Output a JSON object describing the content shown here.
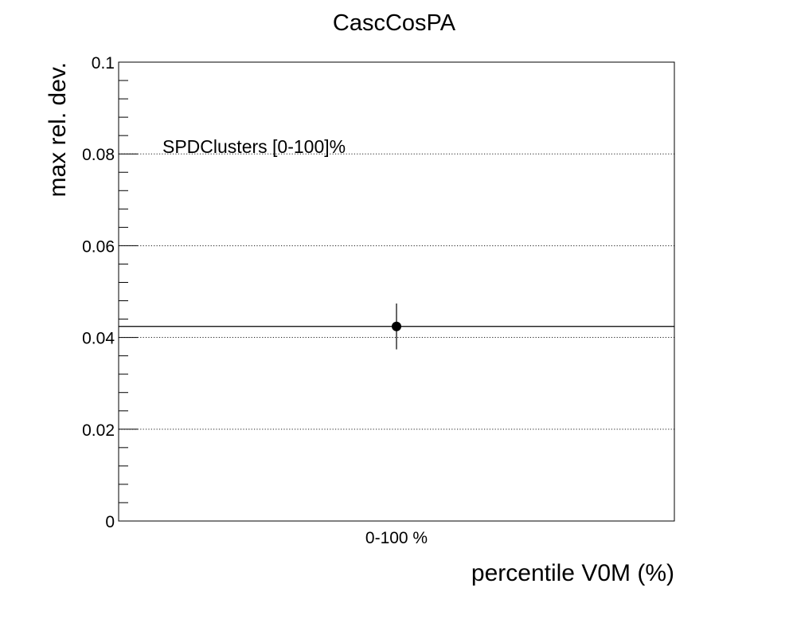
{
  "chart_data": {
    "type": "scatter",
    "title": "CascCosPA",
    "xlabel": "percentile V0M (%)",
    "ylabel": "max rel. dev.",
    "categories": [
      "0-100 %"
    ],
    "series": [
      {
        "values": [
          0.0424
        ],
        "errors": [
          0.005
        ]
      }
    ],
    "reference_line": 0.0424,
    "annotation": "SPDClusters [0-100]%",
    "ylim": [
      0,
      0.1
    ],
    "y_ticks": [
      0,
      0.02,
      0.04,
      0.06,
      0.08,
      0.1
    ],
    "y_tick_labels": [
      "0",
      "0.02",
      "0.04",
      "0.06",
      "0.08",
      "0.1"
    ],
    "grid_y": true,
    "grid_x": false
  }
}
